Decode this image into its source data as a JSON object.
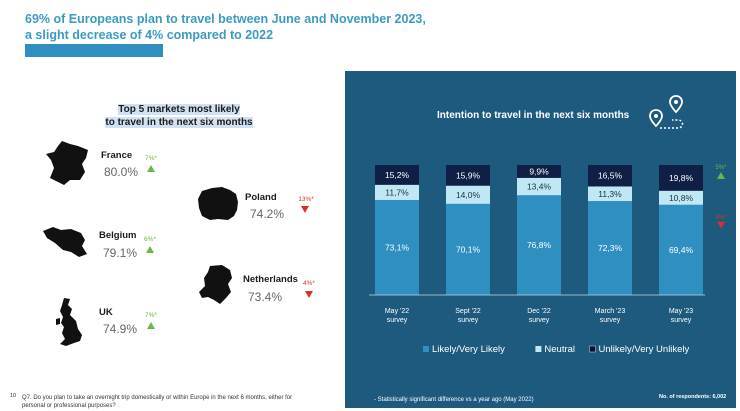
{
  "page": {
    "title_line1": "69% of Europeans plan to travel between June and November 2023,",
    "title_line2": "a slight decrease of 4% compared to 2022",
    "page_number": "10",
    "footer_question": "Q7. Do you plan to take an overnight trip domestically or within Europe in the next 6 months, either for personal or professional purposes?",
    "footer_significance": "- Statistically significant difference vs a year ago (May 2022)",
    "footer_respondents": "No. of respondents: 6,002"
  },
  "markets": {
    "title_line1": "Top 5 markets most likely",
    "title_line2": "to travel in the next six months",
    "items": [
      {
        "name": "France",
        "value": "80.0%",
        "change": "7%*",
        "direction": "up"
      },
      {
        "name": "Poland",
        "value": "74.2%",
        "change": "13%*",
        "direction": "down"
      },
      {
        "name": "Belgium",
        "value": "79.1%",
        "change": "6%*",
        "direction": "up"
      },
      {
        "name": "Netherlands",
        "value": "73.4%",
        "change": "4%*",
        "direction": "down"
      },
      {
        "name": "UK",
        "value": "74.9%",
        "change": "7%*",
        "direction": "up"
      }
    ],
    "colors": {
      "up": "#6fb34a",
      "down": "#d0342c"
    }
  },
  "chart_data": {
    "type": "bar",
    "stacked": true,
    "title": "Intention to travel in the next six months",
    "categories": [
      [
        "May '22",
        "survey"
      ],
      [
        "Sept '22",
        "survey"
      ],
      [
        "Dec '22",
        "survey"
      ],
      [
        "March '23",
        "survey"
      ],
      [
        "May '23",
        "survey"
      ]
    ],
    "series": [
      {
        "name": "Likely/Very Likely",
        "color": "#2f8fc1",
        "text_color": "#ffffff",
        "values": [
          73.1,
          70.1,
          76.8,
          72.3,
          69.4
        ],
        "labels": [
          "73,1%",
          "70,1%",
          "76,8%",
          "72,3%",
          "69,4%"
        ]
      },
      {
        "name": "Neutral",
        "color": "#bfe8f4",
        "text_color": "#1a3040",
        "values": [
          11.7,
          14.0,
          13.4,
          11.3,
          10.8
        ],
        "labels": [
          "11,7%",
          "14,0%",
          "13,4%",
          "11,3%",
          "10,8%"
        ]
      },
      {
        "name": "Unlikely/Very Unlikely",
        "color": "#0f1f45",
        "text_color": "#ffffff",
        "values": [
          15.2,
          15.9,
          9.9,
          16.5,
          19.8
        ],
        "labels": [
          "15,2%",
          "15,9%",
          "9,9%",
          "16,5%",
          "19,8%"
        ]
      }
    ],
    "annotations": [
      {
        "series": "Unlikely/Very Unlikely",
        "category_index": 4,
        "text": "5%*",
        "direction": "up",
        "color": "#6fb34a"
      },
      {
        "series": "Likely/Very Likely",
        "category_index": 4,
        "text": "4%*",
        "direction": "down",
        "color": "#d0342c"
      }
    ],
    "ylim": [
      0,
      100
    ],
    "legend_position": "bottom"
  }
}
